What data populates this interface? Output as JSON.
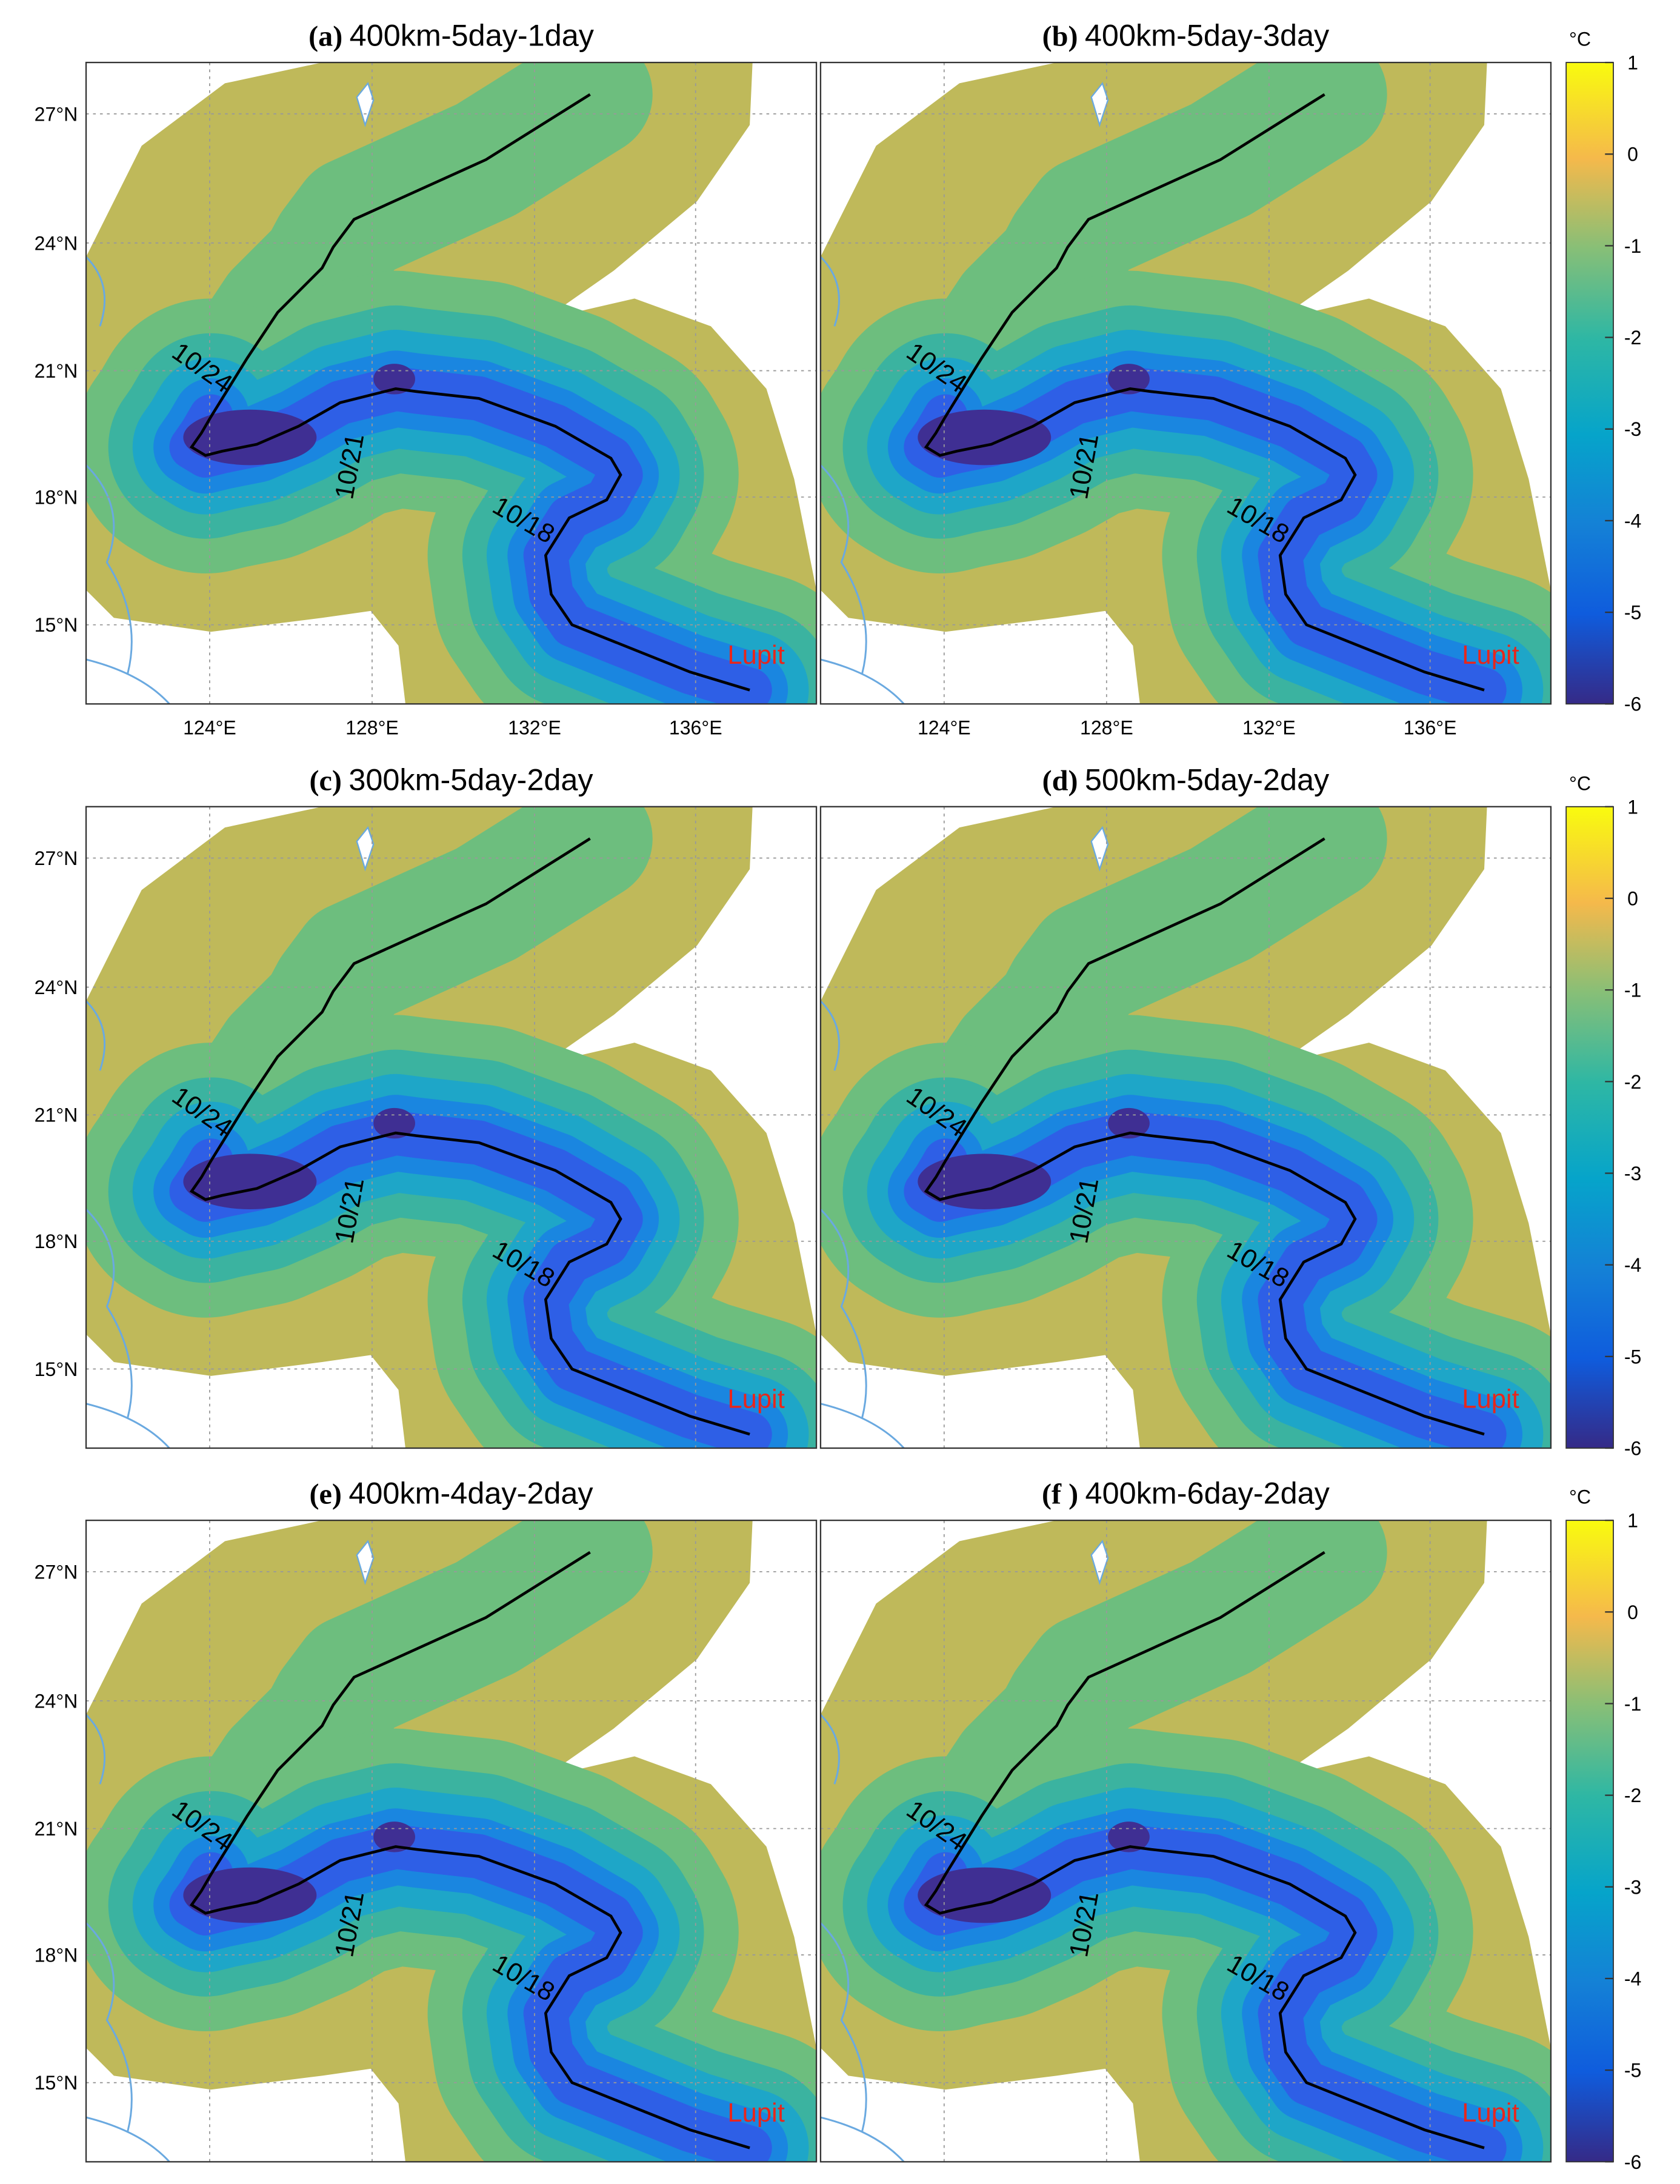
{
  "panels": [
    {
      "label": "(a)",
      "title": "400km-5day-1day",
      "track_labels": [
        "10/24",
        "10/21",
        "10/18"
      ],
      "storm": "Lupit"
    },
    {
      "label": "(b)",
      "title": "400km-5day-3day",
      "track_labels": [
        "10/24",
        "10/21",
        "10/18"
      ],
      "storm": "Lupit"
    },
    {
      "label": "(c)",
      "title": "300km-5day-2day",
      "track_labels": [
        "10/24",
        "10/21",
        "10/18"
      ],
      "storm": "Lupit"
    },
    {
      "label": "(d)",
      "title": "500km-5day-2day",
      "track_labels": [
        "10/24",
        "10/21",
        "10/18"
      ],
      "storm": "Lupit"
    },
    {
      "label": "(e)",
      "title": "400km-4day-2day",
      "track_labels": [
        "10/24",
        "10/21",
        "10/18"
      ],
      "storm": "Lupit"
    },
    {
      "label": "(f )",
      "title": "400km-6day-2day",
      "track_labels": [
        "10/24",
        "10/21",
        "10/18"
      ],
      "storm": "Lupit"
    }
  ],
  "x_tick_labels": [
    "124°E",
    "128°E",
    "132°E",
    "136°E"
  ],
  "y_tick_labels": [
    "27°N",
    "24°N",
    "21°N",
    "18°N",
    "15°N"
  ],
  "colorbar": {
    "unit": "°C",
    "ticks": [
      1,
      0,
      -1,
      -2,
      -3,
      -4,
      -5,
      -6
    ]
  }
}
